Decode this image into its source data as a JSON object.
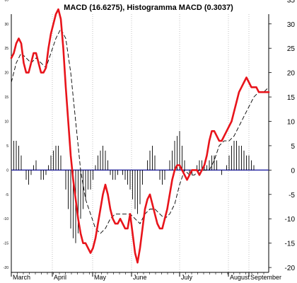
{
  "chart_data": {
    "type": "line",
    "title": "MACD (16.6275), Histogramma MACD (0.3037)",
    "xlabel": "",
    "ylabel": "",
    "ylim": [
      -25,
      40
    ],
    "x_tick_labels": [
      "March",
      "April",
      "May",
      "June",
      "July",
      "August",
      "September"
    ],
    "y_ticks": [
      -20,
      -15,
      -10,
      -5,
      0,
      5,
      10,
      15,
      20,
      25,
      30,
      35
    ],
    "grid": "vertical-dotted-at-months",
    "colors": {
      "macd": "#e8141b",
      "signal": "#000000",
      "histogram": "#000000",
      "zero_line": "#2b2ba6"
    },
    "series": [
      {
        "kind": "macd",
        "style": "thick-solid-red",
        "x": [
          0,
          2,
          4,
          6,
          8,
          10,
          12,
          14,
          16,
          18,
          20,
          22,
          24,
          26,
          28,
          30,
          32,
          34,
          36,
          38,
          40,
          42,
          44,
          46,
          48,
          50,
          52,
          54,
          56,
          58,
          60,
          62,
          64,
          66,
          68,
          70,
          72,
          74,
          76,
          78,
          80,
          82,
          84,
          86,
          88,
          90,
          92,
          94,
          96,
          98,
          100,
          102,
          104,
          106,
          108,
          110,
          112,
          114,
          116,
          118,
          120,
          122,
          124,
          126,
          128,
          130,
          132,
          134,
          136,
          138,
          140,
          142,
          144,
          146,
          148,
          150,
          152,
          154,
          156,
          158,
          160,
          162,
          164,
          166,
          168,
          170,
          172,
          174,
          176,
          178,
          180,
          182,
          184,
          186,
          188,
          190,
          192,
          194,
          196,
          198,
          200,
          202,
          204,
          206,
          208
        ],
        "values": [
          23,
          24,
          26,
          27,
          26,
          22,
          20,
          20,
          22,
          24,
          24,
          22,
          20,
          20,
          21,
          25,
          28,
          30,
          32,
          33,
          31,
          25,
          17,
          10,
          3,
          -2,
          -6,
          -10,
          -13,
          -15,
          -15,
          -16,
          -17,
          -16,
          -14,
          -11,
          -8,
          -5,
          -3,
          -5,
          -8,
          -10,
          -11,
          -11,
          -10,
          -11,
          -12,
          -12,
          -9,
          -13,
          -17,
          -19,
          -16,
          -12,
          -8,
          -6,
          -5,
          -7,
          -9,
          -11,
          -12,
          -12,
          -10,
          -8,
          -5,
          -2,
          0,
          1,
          1,
          0,
          -1,
          -2,
          -1,
          0,
          0,
          0,
          -1,
          0,
          1,
          3,
          6,
          8,
          8,
          7,
          6,
          6,
          7,
          8,
          9,
          10,
          12,
          14,
          16,
          17,
          18,
          19,
          18,
          17,
          17,
          17,
          16,
          16,
          16,
          16,
          16
        ]
      },
      {
        "kind": "signal",
        "style": "thin-dashed-black",
        "x": [
          0,
          4,
          8,
          12,
          16,
          20,
          24,
          28,
          32,
          36,
          40,
          44,
          48,
          52,
          56,
          60,
          64,
          68,
          72,
          76,
          80,
          84,
          88,
          92,
          96,
          100,
          104,
          108,
          112,
          116,
          120,
          124,
          128,
          132,
          136,
          140,
          144,
          148,
          152,
          156,
          160,
          164,
          168,
          172,
          176,
          180,
          184,
          188,
          192,
          196,
          200,
          204,
          208
        ],
        "values": [
          18,
          22,
          24,
          23,
          22,
          23,
          22,
          21,
          24,
          27,
          29,
          27,
          20,
          10,
          0,
          -6,
          -9,
          -12,
          -13,
          -12,
          -10,
          -9,
          -9,
          -9,
          -9,
          -10,
          -11,
          -9,
          -8,
          -8,
          -9,
          -10,
          -9,
          -7,
          -3,
          0,
          -1,
          -1,
          0,
          0,
          0,
          2,
          5,
          6,
          6,
          7,
          9,
          11,
          13,
          15,
          16,
          16,
          17
        ]
      },
      {
        "kind": "histogram",
        "style": "black-bars",
        "x": [
          0,
          2,
          4,
          6,
          8,
          10,
          12,
          14,
          16,
          18,
          20,
          22,
          24,
          26,
          28,
          30,
          32,
          34,
          36,
          38,
          40,
          42,
          44,
          46,
          48,
          50,
          52,
          54,
          56,
          58,
          60,
          62,
          64,
          66,
          68,
          70,
          72,
          74,
          76,
          78,
          80,
          82,
          84,
          86,
          88,
          90,
          92,
          94,
          96,
          98,
          100,
          102,
          104,
          106,
          108,
          110,
          112,
          114,
          116,
          118,
          120,
          122,
          124,
          126,
          128,
          130,
          132,
          134,
          136,
          138,
          140,
          142,
          144,
          146,
          148,
          150,
          152,
          154,
          156,
          158,
          160,
          162,
          164,
          166,
          168,
          170,
          172,
          174,
          176,
          178,
          180,
          182,
          184,
          186,
          188,
          190,
          192,
          194,
          196,
          198,
          200,
          202,
          204,
          206,
          208
        ],
        "values": [
          5,
          6,
          6,
          5,
          3,
          0,
          -2,
          -3,
          -1,
          1,
          2,
          0,
          -2,
          -2,
          -1,
          1,
          3,
          4,
          5,
          5,
          3,
          0,
          -4,
          -8,
          -12,
          -14,
          -15,
          -13,
          -10,
          -8,
          -6,
          -4,
          -4,
          -2,
          1,
          3,
          4,
          5,
          4,
          2,
          -1,
          -2,
          -2,
          -1,
          0,
          -1,
          -2,
          -3,
          -4,
          -6,
          -8,
          -9,
          -7,
          -3,
          0,
          2,
          4,
          5,
          3,
          0,
          -2,
          -3,
          -2,
          0,
          2,
          4,
          6,
          7,
          8,
          5,
          2,
          0,
          -1,
          -1,
          0,
          1,
          2,
          2,
          1,
          1,
          2,
          3,
          3,
          2,
          0,
          -1,
          0,
          1,
          3,
          5,
          6,
          6,
          5,
          5,
          4,
          3,
          3,
          2,
          1,
          0,
          0,
          0,
          0,
          0,
          0
        ]
      }
    ]
  }
}
